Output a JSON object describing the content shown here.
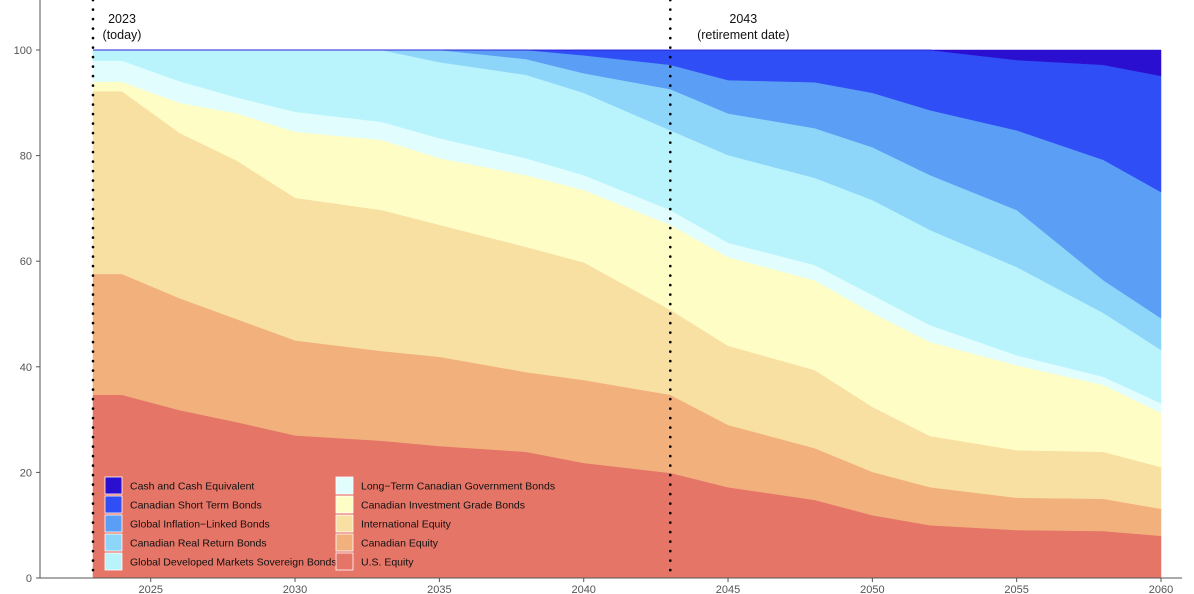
{
  "chart_data": {
    "type": "area",
    "stacked": true,
    "title": "",
    "xlabel": "",
    "ylabel": "",
    "xlim": [
      2023,
      2060
    ],
    "ylim": [
      0,
      100
    ],
    "x_ticks": [
      2025,
      2030,
      2035,
      2040,
      2045,
      2050,
      2055,
      2060
    ],
    "y_ticks": [
      0,
      20,
      40,
      60,
      80,
      100
    ],
    "grid": false,
    "legend_position": "bottom-left",
    "annotations": [
      {
        "x": 2023,
        "line1": "2023",
        "line2": "(today)"
      },
      {
        "x": 2043,
        "line1": "2043",
        "line2": "(retirement date)"
      }
    ],
    "x": [
      2023,
      2024,
      2026,
      2028,
      2030,
      2033,
      2035,
      2038,
      2040,
      2043,
      2045,
      2048,
      2050,
      2052,
      2055,
      2058,
      2060
    ],
    "series": [
      {
        "name": "U.S. Equity",
        "color": "#e57567",
        "values": [
          34.7,
          34.7,
          31.8,
          29.5,
          27,
          26,
          25,
          23.9,
          21.8,
          19.9,
          17.2,
          14.8,
          11.9,
          10,
          9.1,
          8.9,
          8
        ]
      },
      {
        "name": "Canadian Equity",
        "color": "#f1b07c",
        "values": [
          22.9,
          22.9,
          21.2,
          19.5,
          18,
          17,
          16.9,
          15.1,
          15.7,
          14.8,
          11.8,
          9.8,
          8.2,
          7.2,
          6.1,
          6.1,
          5.1
        ]
      },
      {
        "name": "International Equity",
        "color": "#f8dfa2",
        "values": [
          34.6,
          34.6,
          31.3,
          30,
          27,
          26.7,
          25,
          23.7,
          22.3,
          16.1,
          15,
          14.8,
          12.3,
          9.7,
          9,
          8.9,
          7.9
        ]
      },
      {
        "name": "Canadian Investment Grade Bonds",
        "color": "#fefdc6",
        "values": [
          1.8,
          1.8,
          5.7,
          9,
          12.5,
          13.3,
          12.6,
          13.6,
          13.7,
          16.1,
          16.8,
          17,
          17.8,
          17.8,
          16.1,
          12.7,
          10.3
        ]
      },
      {
        "name": "Long−Term Canadian Government Bonds",
        "color": "#e1fdfe",
        "values": [
          4,
          4,
          4.1,
          3,
          3.8,
          3.4,
          3.8,
          3.2,
          2.8,
          2.8,
          2.7,
          2.9,
          3.4,
          3.2,
          1.9,
          1.5,
          1.8
        ]
      },
      {
        "name": "Global Developed Markets Sovereign Bonds",
        "color": "#b9f4fd",
        "values": [
          2,
          2,
          5.9,
          9,
          11.7,
          13.6,
          14.4,
          15.8,
          15.6,
          15.1,
          16.6,
          16.5,
          18,
          18,
          16.7,
          12.1,
          10.1
        ]
      },
      {
        "name": "Canadian Real Return Bonds",
        "color": "#8dd6fa",
        "values": [
          0,
          0,
          0,
          0,
          0,
          0,
          2.3,
          3,
          3.7,
          7.8,
          7.9,
          9.4,
          10,
          10.4,
          10.8,
          6.2,
          6
        ]
      },
      {
        "name": "Global Inflation−Linked Bonds",
        "color": "#5b9ef5",
        "values": [
          0,
          0,
          0,
          0,
          0,
          0,
          0,
          1.7,
          3.4,
          4.6,
          6.3,
          8.7,
          10.3,
          12.3,
          15.1,
          22.8,
          23.9
        ]
      },
      {
        "name": "Canadian Short Term Bonds",
        "color": "#304ef5",
        "values": [
          0,
          0,
          0,
          0,
          0,
          0,
          0,
          0,
          1,
          2.8,
          5.7,
          6.1,
          8.1,
          11.4,
          13.3,
          18,
          22
        ]
      },
      {
        "name": "Cash and Cash Equivalent",
        "color": "#2a0fd0",
        "values": [
          0,
          0,
          0,
          0,
          0,
          0,
          0,
          0,
          0,
          0,
          0,
          0,
          0,
          0,
          1.9,
          2.8,
          4.9
        ]
      }
    ],
    "legend_order": [
      "Cash and Cash Equivalent",
      "Canadian Short Term Bonds",
      "Global Inflation−Linked Bonds",
      "Canadian Real Return Bonds",
      "Global Developed Markets Sovereign Bonds",
      "Long−Term Canadian Government Bonds",
      "Canadian Investment Grade Bonds",
      "International Equity",
      "Canadian Equity",
      "U.S. Equity"
    ]
  }
}
